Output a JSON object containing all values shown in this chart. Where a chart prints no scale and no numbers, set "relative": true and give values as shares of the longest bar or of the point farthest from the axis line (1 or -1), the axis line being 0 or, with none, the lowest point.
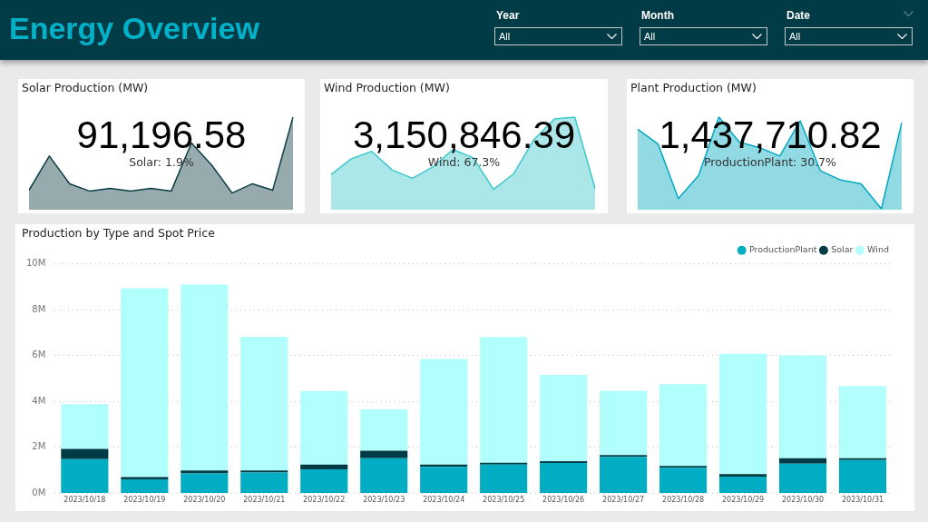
{
  "chart_data": [
    {
      "type": "other",
      "title": "Energy Overview",
      "annotations": [
        "Year",
        "All",
        "Month",
        "All",
        "Date",
        "All"
      ]
    },
    {
      "type": "area",
      "title": "Solar Production (MW)",
      "annotations": [
        "91,196.58",
        "Solar: 1.9%"
      ],
      "relative": true,
      "marker": "none",
      "categories": [
        null,
        null,
        null,
        null,
        null,
        null,
        null,
        null,
        null,
        null,
        null,
        null,
        null,
        null
      ],
      "series": [
        {
          "color": "#0d3d45",
          "values": [
            0.21,
            0.58,
            0.28,
            0.2,
            0.23,
            0.2,
            0.23,
            0.2,
            0.72,
            0.48,
            0.18,
            0.28,
            0.21,
            1
          ]
        }
      ]
    },
    {
      "type": "area",
      "title": "Wind Production (MW)",
      "annotations": [
        "3,150,846.39",
        "Wind: 67.3%"
      ],
      "relative": true,
      "marker": "none",
      "categories": [
        null,
        null,
        null,
        null,
        null,
        null,
        null,
        null,
        null,
        null,
        null,
        null,
        null,
        null
      ],
      "series": [
        {
          "color": "#3cc8cc",
          "values": [
            0.38,
            0.55,
            0.63,
            0.43,
            0.34,
            0.46,
            0.65,
            0.56,
            0.22,
            0.39,
            0.76,
            0.98,
            1,
            0.23
          ]
        }
      ]
    },
    {
      "type": "area",
      "title": "Plant Production (MW)",
      "annotations": [
        "1,437,710.82",
        "ProductionPlant: 30.7%"
      ],
      "relative": true,
      "marker": "none",
      "categories": [
        null,
        null,
        null,
        null,
        null,
        null,
        null,
        null,
        null,
        null,
        null,
        null,
        null,
        null
      ],
      "series": [
        {
          "color": "#00a9c0",
          "values": [
            0.87,
            0.71,
            0.12,
            0.37,
            1,
            0.73,
            0.67,
            0.58,
            0.96,
            0.42,
            0.32,
            0.28,
            0.01,
            0.94
          ]
        }
      ]
    },
    {
      "type": "bar",
      "title": "Production by Type and Spot Price",
      "stacked": true,
      "grid": "y",
      "legend": "top right",
      "categories": [
        "2023/10/18",
        "2023/10/19",
        "2023/10/20",
        "2023/10/21",
        "2023/10/22",
        "2023/10/23",
        "2023/10/24",
        "2023/10/25",
        "2023/10/26",
        "2023/10/27",
        "2023/10/28",
        "2023/10/29",
        "2023/10/30",
        "2023/10/31"
      ],
      "ylim": [
        0,
        10
      ],
      "yticks": [
        {
          "value": 0,
          "label": "0M"
        },
        {
          "value": 2,
          "label": "2M"
        },
        {
          "value": 4,
          "label": "4M"
        },
        {
          "value": 6,
          "label": "6M"
        },
        {
          "value": 8,
          "label": "8M"
        },
        {
          "value": 10,
          "label": "10M"
        }
      ],
      "series": [
        {
          "name": "ProductionPlant",
          "color": "#00adc3",
          "values": [
            1.49,
            0.61,
            0.87,
            0.91,
            1.04,
            1.53,
            1.15,
            1.25,
            1.32,
            1.59,
            1.11,
            0.73,
            1.29,
            1.45
          ]
        },
        {
          "name": "Solar",
          "color": "#003c45",
          "values": [
            0.44,
            0.1,
            0.12,
            0.08,
            0.21,
            0.32,
            0.1,
            0.08,
            0.08,
            0.08,
            0.08,
            0.11,
            0.24,
            0.08
          ]
        },
        {
          "name": "Wind",
          "color": "#b0fffd",
          "values": [
            1.95,
            8.22,
            8.1,
            5.83,
            3.2,
            1.8,
            4.6,
            5.48,
            3.76,
            2.79,
            3.56,
            5.24,
            4.48,
            3.14
          ]
        }
      ]
    }
  ]
}
